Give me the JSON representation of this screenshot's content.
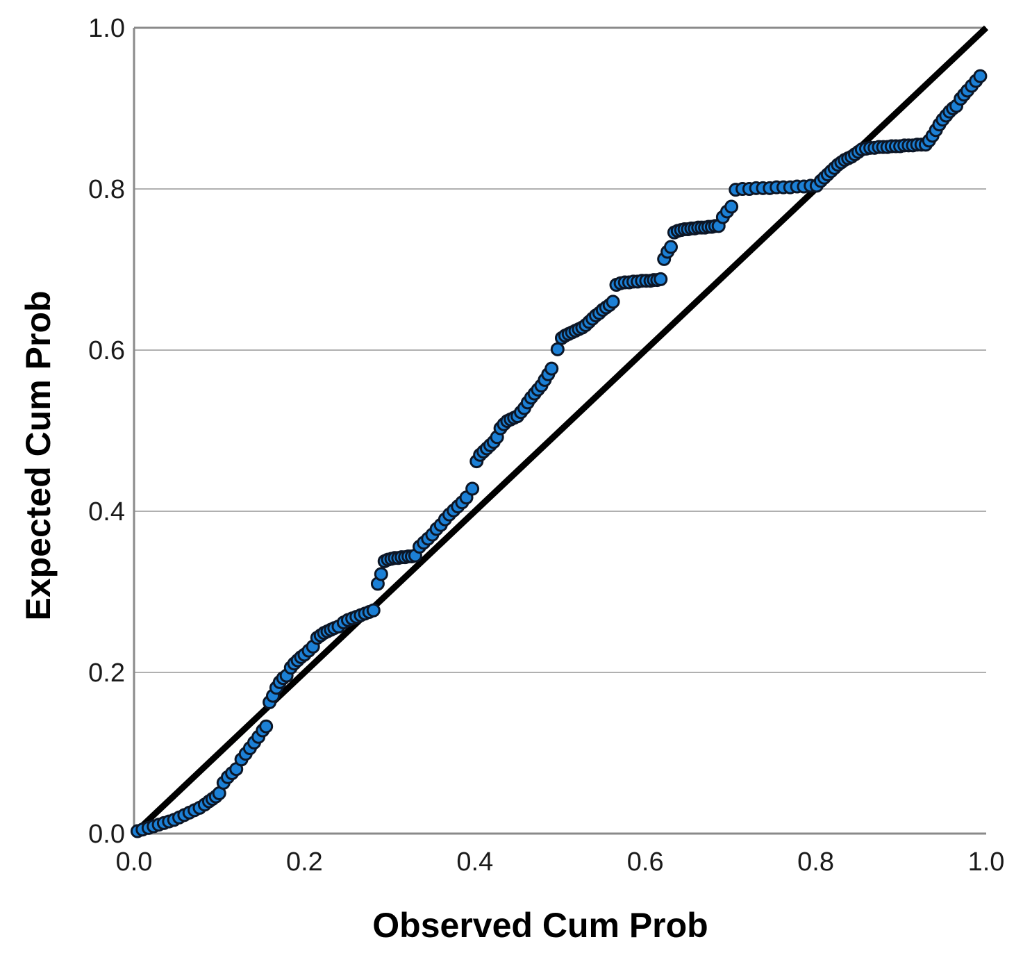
{
  "chart_data": {
    "type": "scatter",
    "title": "",
    "xlabel": "Observed Cum Prob",
    "ylabel": "Expected Cum Prob",
    "xlim": [
      0.0,
      1.0
    ],
    "ylim": [
      0.0,
      1.0
    ],
    "x_tick_labels": [
      "0.0",
      "0.2",
      "0.4",
      "0.6",
      "0.8",
      "1.0"
    ],
    "x_tick_values": [
      0.0,
      0.2,
      0.4,
      0.6,
      0.8,
      1.0
    ],
    "y_tick_labels": [
      "0.0",
      "0.2",
      "0.4",
      "0.6",
      "0.8",
      "1.0"
    ],
    "y_tick_values": [
      0.0,
      0.2,
      0.4,
      0.6,
      0.8,
      1.0
    ],
    "grid": "horizontal",
    "legend": "none",
    "reference_line": {
      "name": "identity-line",
      "from": [
        0.0,
        0.0
      ],
      "to": [
        1.0,
        1.0
      ]
    },
    "series": [
      {
        "name": "Normal P-P points",
        "marker": "circle",
        "points": [
          [
            0.004,
            0.003
          ],
          [
            0.01,
            0.005
          ],
          [
            0.017,
            0.007
          ],
          [
            0.023,
            0.009
          ],
          [
            0.029,
            0.011
          ],
          [
            0.035,
            0.013
          ],
          [
            0.041,
            0.015
          ],
          [
            0.047,
            0.017
          ],
          [
            0.053,
            0.02
          ],
          [
            0.059,
            0.023
          ],
          [
            0.065,
            0.026
          ],
          [
            0.071,
            0.029
          ],
          [
            0.077,
            0.032
          ],
          [
            0.083,
            0.036
          ],
          [
            0.088,
            0.04
          ],
          [
            0.092,
            0.043
          ],
          [
            0.096,
            0.046
          ],
          [
            0.1,
            0.05
          ],
          [
            0.105,
            0.063
          ],
          [
            0.11,
            0.07
          ],
          [
            0.115,
            0.075
          ],
          [
            0.12,
            0.08
          ],
          [
            0.126,
            0.092
          ],
          [
            0.131,
            0.099
          ],
          [
            0.136,
            0.106
          ],
          [
            0.141,
            0.113
          ],
          [
            0.146,
            0.12
          ],
          [
            0.151,
            0.128
          ],
          [
            0.155,
            0.133
          ],
          [
            0.159,
            0.163
          ],
          [
            0.163,
            0.171
          ],
          [
            0.167,
            0.181
          ],
          [
            0.171,
            0.188
          ],
          [
            0.175,
            0.193
          ],
          [
            0.179,
            0.196
          ],
          [
            0.184,
            0.206
          ],
          [
            0.188,
            0.211
          ],
          [
            0.192,
            0.215
          ],
          [
            0.196,
            0.219
          ],
          [
            0.2,
            0.222
          ],
          [
            0.205,
            0.227
          ],
          [
            0.21,
            0.232
          ],
          [
            0.215,
            0.243
          ],
          [
            0.219,
            0.246
          ],
          [
            0.223,
            0.249
          ],
          [
            0.227,
            0.251
          ],
          [
            0.231,
            0.253
          ],
          [
            0.235,
            0.255
          ],
          [
            0.24,
            0.257
          ],
          [
            0.246,
            0.262
          ],
          [
            0.251,
            0.265
          ],
          [
            0.256,
            0.267
          ],
          [
            0.261,
            0.269
          ],
          [
            0.266,
            0.271
          ],
          [
            0.271,
            0.273
          ],
          [
            0.276,
            0.275
          ],
          [
            0.281,
            0.277
          ],
          [
            0.286,
            0.31
          ],
          [
            0.29,
            0.322
          ],
          [
            0.294,
            0.338
          ],
          [
            0.298,
            0.34
          ],
          [
            0.302,
            0.341
          ],
          [
            0.306,
            0.342
          ],
          [
            0.31,
            0.342
          ],
          [
            0.314,
            0.343
          ],
          [
            0.318,
            0.343
          ],
          [
            0.322,
            0.344
          ],
          [
            0.326,
            0.344
          ],
          [
            0.33,
            0.345
          ],
          [
            0.335,
            0.356
          ],
          [
            0.34,
            0.361
          ],
          [
            0.345,
            0.366
          ],
          [
            0.35,
            0.371
          ],
          [
            0.355,
            0.378
          ],
          [
            0.36,
            0.383
          ],
          [
            0.365,
            0.39
          ],
          [
            0.37,
            0.396
          ],
          [
            0.375,
            0.401
          ],
          [
            0.38,
            0.406
          ],
          [
            0.385,
            0.411
          ],
          [
            0.39,
            0.417
          ],
          [
            0.397,
            0.428
          ],
          [
            0.402,
            0.462
          ],
          [
            0.406,
            0.47
          ],
          [
            0.41,
            0.474
          ],
          [
            0.414,
            0.478
          ],
          [
            0.418,
            0.482
          ],
          [
            0.422,
            0.486
          ],
          [
            0.426,
            0.492
          ],
          [
            0.43,
            0.503
          ],
          [
            0.434,
            0.508
          ],
          [
            0.438,
            0.512
          ],
          [
            0.442,
            0.514
          ],
          [
            0.446,
            0.516
          ],
          [
            0.45,
            0.518
          ],
          [
            0.454,
            0.523
          ],
          [
            0.458,
            0.528
          ],
          [
            0.462,
            0.535
          ],
          [
            0.466,
            0.541
          ],
          [
            0.47,
            0.546
          ],
          [
            0.474,
            0.551
          ],
          [
            0.478,
            0.556
          ],
          [
            0.482,
            0.563
          ],
          [
            0.486,
            0.57
          ],
          [
            0.49,
            0.577
          ],
          [
            0.497,
            0.601
          ],
          [
            0.502,
            0.615
          ],
          [
            0.506,
            0.618
          ],
          [
            0.51,
            0.62
          ],
          [
            0.514,
            0.622
          ],
          [
            0.518,
            0.624
          ],
          [
            0.522,
            0.626
          ],
          [
            0.526,
            0.628
          ],
          [
            0.53,
            0.631
          ],
          [
            0.534,
            0.635
          ],
          [
            0.538,
            0.639
          ],
          [
            0.542,
            0.643
          ],
          [
            0.546,
            0.646
          ],
          [
            0.55,
            0.65
          ],
          [
            0.554,
            0.653
          ],
          [
            0.558,
            0.656
          ],
          [
            0.562,
            0.66
          ],
          [
            0.566,
            0.681
          ],
          [
            0.571,
            0.683
          ],
          [
            0.576,
            0.684
          ],
          [
            0.581,
            0.684
          ],
          [
            0.586,
            0.685
          ],
          [
            0.591,
            0.685
          ],
          [
            0.596,
            0.686
          ],
          [
            0.601,
            0.686
          ],
          [
            0.606,
            0.686
          ],
          [
            0.61,
            0.687
          ],
          [
            0.614,
            0.687
          ],
          [
            0.618,
            0.688
          ],
          [
            0.622,
            0.713
          ],
          [
            0.626,
            0.722
          ],
          [
            0.63,
            0.728
          ],
          [
            0.634,
            0.746
          ],
          [
            0.638,
            0.748
          ],
          [
            0.642,
            0.749
          ],
          [
            0.646,
            0.75
          ],
          [
            0.65,
            0.75
          ],
          [
            0.654,
            0.751
          ],
          [
            0.658,
            0.751
          ],
          [
            0.662,
            0.752
          ],
          [
            0.666,
            0.752
          ],
          [
            0.67,
            0.752
          ],
          [
            0.674,
            0.753
          ],
          [
            0.678,
            0.753
          ],
          [
            0.682,
            0.754
          ],
          [
            0.686,
            0.754
          ],
          [
            0.691,
            0.765
          ],
          [
            0.696,
            0.772
          ],
          [
            0.701,
            0.778
          ],
          [
            0.706,
            0.799
          ],
          [
            0.714,
            0.8
          ],
          [
            0.722,
            0.8
          ],
          [
            0.73,
            0.801
          ],
          [
            0.738,
            0.801
          ],
          [
            0.746,
            0.801
          ],
          [
            0.754,
            0.802
          ],
          [
            0.762,
            0.802
          ],
          [
            0.77,
            0.802
          ],
          [
            0.778,
            0.803
          ],
          [
            0.786,
            0.803
          ],
          [
            0.794,
            0.804
          ],
          [
            0.801,
            0.804
          ],
          [
            0.806,
            0.81
          ],
          [
            0.81,
            0.814
          ],
          [
            0.814,
            0.818
          ],
          [
            0.818,
            0.822
          ],
          [
            0.822,
            0.826
          ],
          [
            0.826,
            0.83
          ],
          [
            0.83,
            0.833
          ],
          [
            0.834,
            0.836
          ],
          [
            0.838,
            0.838
          ],
          [
            0.842,
            0.84
          ],
          [
            0.846,
            0.843
          ],
          [
            0.85,
            0.846
          ],
          [
            0.854,
            0.849
          ],
          [
            0.859,
            0.85
          ],
          [
            0.864,
            0.851
          ],
          [
            0.869,
            0.851
          ],
          [
            0.874,
            0.852
          ],
          [
            0.879,
            0.852
          ],
          [
            0.884,
            0.852
          ],
          [
            0.889,
            0.853
          ],
          [
            0.894,
            0.853
          ],
          [
            0.899,
            0.853
          ],
          [
            0.904,
            0.854
          ],
          [
            0.909,
            0.854
          ],
          [
            0.914,
            0.854
          ],
          [
            0.919,
            0.855
          ],
          [
            0.924,
            0.855
          ],
          [
            0.929,
            0.855
          ],
          [
            0.933,
            0.86
          ],
          [
            0.937,
            0.866
          ],
          [
            0.941,
            0.873
          ],
          [
            0.945,
            0.88
          ],
          [
            0.949,
            0.886
          ],
          [
            0.953,
            0.891
          ],
          [
            0.957,
            0.896
          ],
          [
            0.961,
            0.9
          ],
          [
            0.965,
            0.903
          ],
          [
            0.97,
            0.912
          ],
          [
            0.974,
            0.917
          ],
          [
            0.978,
            0.922
          ],
          [
            0.983,
            0.928
          ],
          [
            0.988,
            0.934
          ],
          [
            0.993,
            0.94
          ]
        ]
      }
    ]
  },
  "colors": {
    "marker_fill": "#1c80d6",
    "marker_edge": "#0c1626",
    "reference_line": "#000000",
    "gridline": "#b0b0b0",
    "axis_line": "#8a8a8a",
    "tick_text": "#1a1a1a",
    "background": "#ffffff"
  }
}
